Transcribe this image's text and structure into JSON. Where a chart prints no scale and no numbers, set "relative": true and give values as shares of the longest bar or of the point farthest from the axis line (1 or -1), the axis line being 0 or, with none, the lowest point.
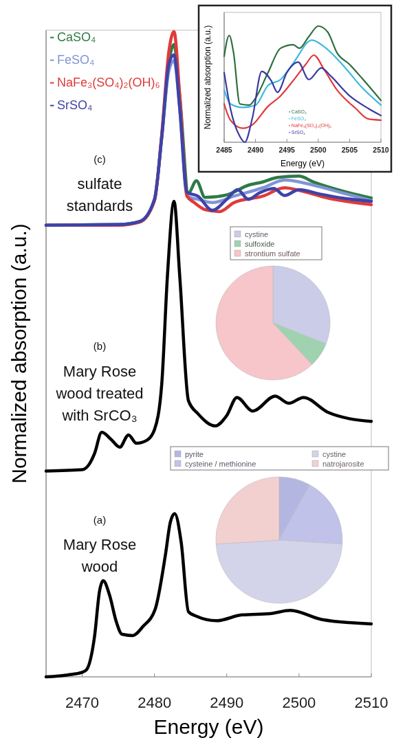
{
  "chart_data": [
    {
      "type": "line",
      "xlabel": "Energy (eV)",
      "ylabel": "Normalized absorption (a.u.)",
      "relative": true,
      "xlim": [
        2465,
        2510
      ],
      "xticks": [
        2470,
        2480,
        2490,
        2500,
        2510
      ],
      "legend": "top left",
      "line_style": "solid",
      "annotations": [
        "(c)",
        "sulfate\nstandards",
        "(b)",
        "Mary Rose\nwood treated\nwith SrCO₃",
        "(a)",
        "Mary Rose\nwood"
      ],
      "series": [
        {
          "color": "#000000",
          "x": [
            2465,
            2470,
            2471,
            2471.7,
            2472.7,
            2474,
            2475.2,
            2476.4,
            2477.5,
            2479,
            2480,
            2481,
            2481.8,
            2482.7,
            2483.5,
            2484.7,
            2486,
            2488.4,
            2490,
            2491.4,
            2493.6,
            2496.7,
            2498.6,
            2500.6,
            2504,
            2507,
            2510
          ],
          "values": [
            0.319,
            0.321,
            0.33,
            0.346,
            0.379,
            0.368,
            0.356,
            0.375,
            0.362,
            0.367,
            0.383,
            0.453,
            0.623,
            0.737,
            0.62,
            0.428,
            0.408,
            0.389,
            0.405,
            0.433,
            0.412,
            0.435,
            0.424,
            0.433,
            0.41,
            0.4,
            0.396
          ]
        },
        {
          "color": "#000000",
          "x": [
            2465,
            2468,
            2470,
            2470.6,
            2471.7,
            2472.4,
            2472.9,
            2473.8,
            2474.7,
            2475.5,
            2477,
            2478.4,
            2480.1,
            2481.5,
            2482.2,
            2482.8,
            2483.7,
            2484.7,
            2485.8,
            2488.6,
            2492.1,
            2496,
            2498.8,
            2503.1,
            2510
          ],
          "values": [
            0,
            0.003,
            0.007,
            0.011,
            0.062,
            0.133,
            0.149,
            0.126,
            0.086,
            0.066,
            0.064,
            0.078,
            0.105,
            0.188,
            0.24,
            0.253,
            0.208,
            0.101,
            0.094,
            0.087,
            0.096,
            0.098,
            0.103,
            0.089,
            0.082
          ]
        },
        {
          "name": "CaSO₄",
          "color": "#2f7a45",
          "x": [
            2465,
            2475,
            2478,
            2480,
            2481,
            2482,
            2482.7,
            2483.5,
            2484.7,
            2485.8,
            2487,
            2490,
            2493,
            2495,
            2497,
            2500,
            2502,
            2506,
            2510
          ],
          "values": [
            0.7,
            0.701,
            0.706,
            0.74,
            0.836,
            0.953,
            0.98,
            0.9,
            0.75,
            0.769,
            0.743,
            0.747,
            0.762,
            0.767,
            0.774,
            0.776,
            0.767,
            0.753,
            0.742
          ]
        },
        {
          "name": "FeSO₄",
          "color": "#8194d6",
          "x": [
            2465,
            2475,
            2478,
            2480,
            2481,
            2482,
            2482.7,
            2483.5,
            2484.5,
            2486,
            2488,
            2491,
            2495,
            2498,
            2502,
            2506,
            2510
          ],
          "values": [
            0.7,
            0.701,
            0.706,
            0.74,
            0.836,
            0.94,
            0.955,
            0.88,
            0.745,
            0.74,
            0.735,
            0.745,
            0.758,
            0.77,
            0.762,
            0.75,
            0.738
          ]
        },
        {
          "name": "NaFe₃(SO₄)₂(OH)₆",
          "color": "#e03a3a",
          "x": [
            2465,
            2475,
            2478,
            2480,
            2481,
            2482,
            2482.7,
            2483.5,
            2484.5,
            2485.5,
            2487,
            2489,
            2491,
            2495,
            2498,
            2500,
            2504,
            2510
          ],
          "values": [
            0.7,
            0.7,
            0.705,
            0.738,
            0.84,
            0.97,
            1,
            0.9,
            0.745,
            0.735,
            0.724,
            0.721,
            0.735,
            0.745,
            0.758,
            0.754,
            0.742,
            0.732
          ]
        },
        {
          "name": "SrSO₄",
          "color": "#3d43a8",
          "x": [
            2465,
            2475,
            2478,
            2480,
            2481,
            2482,
            2482.7,
            2483.5,
            2484.5,
            2486,
            2488,
            2490,
            2491.5,
            2493,
            2494.5,
            2496.5,
            2498,
            2500,
            2503,
            2506,
            2510
          ],
          "values": [
            0.7,
            0.701,
            0.706,
            0.74,
            0.836,
            0.95,
            0.964,
            0.88,
            0.751,
            0.745,
            0.723,
            0.74,
            0.755,
            0.74,
            0.75,
            0.757,
            0.746,
            0.755,
            0.748,
            0.742,
            0.737
          ]
        }
      ]
    },
    {
      "type": "line",
      "xlabel": "Energy (eV)",
      "ylabel": "Normalized absorption (a.u.)",
      "relative": true,
      "xlim": [
        2485,
        2510
      ],
      "xticks": [
        2485,
        2490,
        2495,
        2500,
        2505,
        2510
      ],
      "legend": "bottom",
      "line_style": "solid",
      "series": [
        {
          "name": "CaSO₄",
          "color": "#2f6e3e",
          "x": [
            2485,
            2485.8,
            2486.5,
            2487.5,
            2489,
            2490,
            2492,
            2494,
            2496,
            2497,
            2498.5,
            2500,
            2501.5,
            2503,
            2505,
            2507,
            2510
          ],
          "values": [
            0.74,
            0.92,
            0.77,
            0.33,
            0.32,
            0.38,
            0.6,
            0.81,
            0.84,
            0.81,
            0.91,
            1,
            0.95,
            0.77,
            0.67,
            0.55,
            0.36
          ]
        },
        {
          "name": "FeSO₄",
          "color": "#3cb8e0",
          "x": [
            2485,
            2486,
            2488,
            2490,
            2492,
            2494,
            2496,
            2499,
            2501,
            2504,
            2507,
            2510
          ],
          "values": [
            0.45,
            0.33,
            0.3,
            0.32,
            0.49,
            0.54,
            0.68,
            0.88,
            0.82,
            0.66,
            0.47,
            0.32
          ]
        },
        {
          "name": "NaFe₃(SO₄)₂(OH)₆",
          "color": "#e03a3a",
          "x": [
            2485,
            2486,
            2488,
            2489.5,
            2492,
            2494,
            2496,
            2498,
            2499.3,
            2501,
            2503,
            2506,
            2508,
            2510
          ],
          "values": [
            0.33,
            0.19,
            0.12,
            0.15,
            0.31,
            0.4,
            0.53,
            0.67,
            0.75,
            0.62,
            0.45,
            0.29,
            0.2,
            0.19
          ]
        },
        {
          "name": "SrSO₄",
          "color": "#3a3aa0",
          "x": [
            2485,
            2486,
            2487.5,
            2488.3,
            2489.5,
            2491,
            2492.5,
            2493.5,
            2495,
            2496.8,
            2498.5,
            2500.5,
            2502,
            2505,
            2508,
            2510
          ],
          "values": [
            0.6,
            0.29,
            0.05,
            0,
            0.21,
            0.61,
            0.53,
            0.43,
            0.6,
            0.69,
            0.54,
            0.64,
            0.57,
            0.4,
            0.29,
            0.23
          ]
        }
      ]
    },
    {
      "type": "pie",
      "legend": "top",
      "categories": [
        "cystine",
        "sulfoxide",
        "strontium sulfate"
      ],
      "values": [
        31,
        7,
        62
      ],
      "colors": [
        "#cacce8",
        "#9fd3b0",
        "#f6c6ca"
      ]
    },
    {
      "type": "pie",
      "legend": "top",
      "categories": [
        "pyrite",
        "cysteine / methionine",
        "cystine",
        "natrojarosite"
      ],
      "values": [
        8,
        18,
        48,
        26
      ],
      "colors": [
        "#b4b6e2",
        "#c0c2ea",
        "#d3d4ea",
        "#f3d0d0"
      ]
    }
  ]
}
